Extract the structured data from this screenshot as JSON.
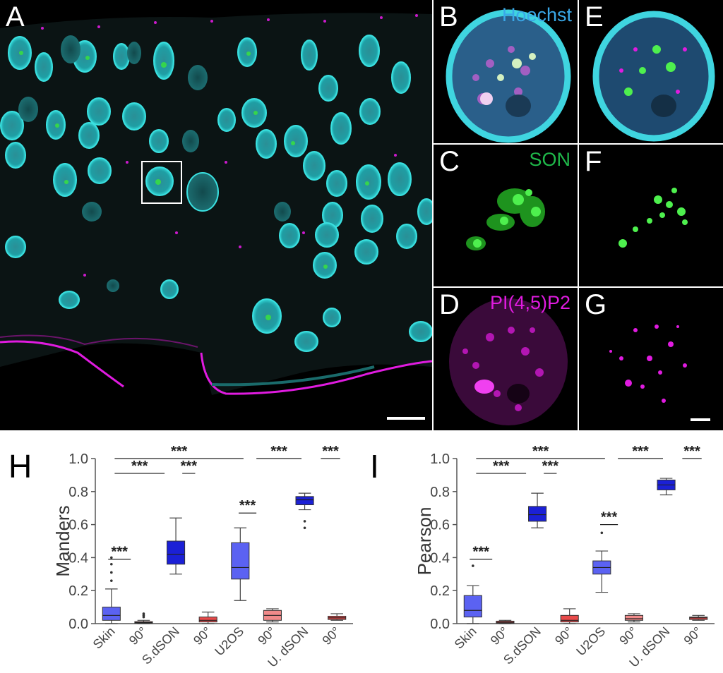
{
  "panels": {
    "A": {
      "label": "A"
    },
    "B": {
      "label": "B",
      "channel": "Hoechst",
      "channel_color": "#3aa8e8"
    },
    "C": {
      "label": "C",
      "channel": "SON",
      "channel_color": "#1fb84a"
    },
    "D": {
      "label": "D",
      "channel": "PI(4,5)P2",
      "channel_color": "#e01be0"
    },
    "E": {
      "label": "E"
    },
    "F": {
      "label": "F"
    },
    "G": {
      "label": "G"
    }
  },
  "colors": {
    "nucleus": "#29c9c9",
    "son": "#39e639",
    "pip2": "#e01be0",
    "box_blue_light": "#5b62f2",
    "box_blue_dark": "#1b20d6",
    "box_red": "#e84a4a",
    "box_pink": "#f08a8a"
  },
  "chart_data": [
    {
      "type": "box",
      "panel_label": "H",
      "ylabel": "Manders",
      "ylim": [
        0,
        1.0
      ],
      "yticks": [
        "0.0",
        "0.2",
        "0.4",
        "0.6",
        "0.8",
        "1.0"
      ],
      "categories": [
        "Skin",
        "90°",
        "S.dSON",
        "90°",
        "U2OS",
        "90°",
        "U. dSON",
        "90°"
      ],
      "boxes": [
        {
          "min": 0.0,
          "q1": 0.02,
          "median": 0.05,
          "q3": 0.1,
          "max": 0.21,
          "outliers": [
            0.26,
            0.31,
            0.36,
            0.4
          ],
          "color": "box_blue_light"
        },
        {
          "min": 0.0,
          "q1": 0.003,
          "median": 0.007,
          "q3": 0.012,
          "max": 0.02,
          "outliers": [
            0.04,
            0.05,
            0.06
          ],
          "color": "box_red"
        },
        {
          "min": 0.3,
          "q1": 0.36,
          "median": 0.42,
          "q3": 0.5,
          "max": 0.64,
          "outliers": [],
          "color": "box_blue_dark"
        },
        {
          "min": 0.0,
          "q1": 0.01,
          "median": 0.02,
          "q3": 0.04,
          "max": 0.07,
          "outliers": [],
          "color": "box_red"
        },
        {
          "min": 0.14,
          "q1": 0.27,
          "median": 0.34,
          "q3": 0.49,
          "max": 0.58,
          "outliers": [],
          "color": "box_blue_light"
        },
        {
          "min": 0.01,
          "q1": 0.02,
          "median": 0.05,
          "q3": 0.08,
          "max": 0.09,
          "outliers": [],
          "color": "box_pink"
        },
        {
          "min": 0.69,
          "q1": 0.72,
          "median": 0.75,
          "q3": 0.77,
          "max": 0.79,
          "outliers": [
            0.62,
            0.58
          ],
          "color": "box_blue_dark"
        },
        {
          "min": 0.02,
          "q1": 0.025,
          "median": 0.035,
          "q3": 0.045,
          "max": 0.06,
          "outliers": [],
          "color": "box_red"
        }
      ],
      "significance": [
        {
          "from": 0,
          "to": 1,
          "y": 0.63,
          "label": "***"
        },
        {
          "from": 1,
          "to": 3,
          "y": 0.92,
          "label": "***"
        },
        {
          "from": 3,
          "to": 5,
          "y": 0.97,
          "label": "***"
        },
        {
          "from": 5,
          "to": 7,
          "y": 0.73,
          "label": "***"
        },
        {
          "from": 0,
          "to": 6,
          "y": 1.06,
          "label": "***"
        },
        {
          "from": 6,
          "to": 8,
          "y": 1.06,
          "label": "***"
        },
        {
          "from": 8,
          "to": 10,
          "y": 1.06,
          "label": "***"
        }
      ],
      "brackets": [
        {
          "x1": 0,
          "x2": 1,
          "y": 0.39,
          "label": "***"
        },
        {
          "x1": 0,
          "x2": 2,
          "y": 0.91,
          "label": "***"
        },
        {
          "x1": 2,
          "x2": 3,
          "y": 0.91,
          "label": "***"
        },
        {
          "x1": 0,
          "x2": 4,
          "y": 1.0,
          "label": "***"
        },
        {
          "x1": 4,
          "x2": 5,
          "y": 0.67,
          "label": "***"
        },
        {
          "x1": 4,
          "x2": 6,
          "y": 1.0,
          "label": "***"
        },
        {
          "x1": 6,
          "x2": 7,
          "y": 1.0,
          "label": "***"
        }
      ]
    },
    {
      "type": "box",
      "panel_label": "I",
      "ylabel": "Pearson",
      "ylim": [
        0,
        1.0
      ],
      "yticks": [
        "0.0",
        "0.2",
        "0.4",
        "0.6",
        "0.8",
        "1.0"
      ],
      "categories": [
        "Skin",
        "90°",
        "S.dSON",
        "90°",
        "U2OS",
        "90°",
        "U. dSON",
        "90°"
      ],
      "boxes": [
        {
          "min": 0.0,
          "q1": 0.04,
          "median": 0.08,
          "q3": 0.17,
          "max": 0.23,
          "outliers": [
            0.35
          ],
          "color": "box_blue_light"
        },
        {
          "min": 0.0,
          "q1": 0.003,
          "median": 0.008,
          "q3": 0.015,
          "max": 0.02,
          "outliers": [],
          "color": "box_red"
        },
        {
          "min": 0.58,
          "q1": 0.62,
          "median": 0.66,
          "q3": 0.71,
          "max": 0.79,
          "outliers": [],
          "color": "box_blue_dark"
        },
        {
          "min": 0.0,
          "q1": 0.01,
          "median": 0.02,
          "q3": 0.05,
          "max": 0.09,
          "outliers": [],
          "color": "box_red"
        },
        {
          "min": 0.19,
          "q1": 0.3,
          "median": 0.34,
          "q3": 0.38,
          "max": 0.44,
          "outliers": [
            0.55
          ],
          "color": "box_blue_light"
        },
        {
          "min": 0.01,
          "q1": 0.02,
          "median": 0.03,
          "q3": 0.05,
          "max": 0.06,
          "outliers": [],
          "color": "box_pink"
        },
        {
          "min": 0.78,
          "q1": 0.81,
          "median": 0.84,
          "q3": 0.87,
          "max": 0.88,
          "outliers": [],
          "color": "box_blue_dark"
        },
        {
          "min": 0.02,
          "q1": 0.025,
          "median": 0.035,
          "q3": 0.04,
          "max": 0.05,
          "outliers": [],
          "color": "box_red"
        }
      ],
      "brackets": [
        {
          "x1": 0,
          "x2": 1,
          "y": 0.4,
          "label": "***"
        },
        {
          "x1": 0,
          "x2": 2,
          "y": 0.91,
          "label": "***"
        },
        {
          "x1": 2,
          "x2": 3,
          "y": 0.91,
          "label": "***"
        },
        {
          "x1": 0,
          "x2": 4,
          "y": 1.0,
          "label": "***"
        },
        {
          "x1": 4,
          "x2": 5,
          "y": 0.6,
          "label": "***"
        },
        {
          "x1": 4,
          "x2": 6,
          "y": 1.0,
          "label": "***"
        },
        {
          "x1": 6,
          "x2": 7,
          "y": 1.0,
          "label": "***"
        }
      ]
    }
  ],
  "scale_bar": "scale-bar"
}
